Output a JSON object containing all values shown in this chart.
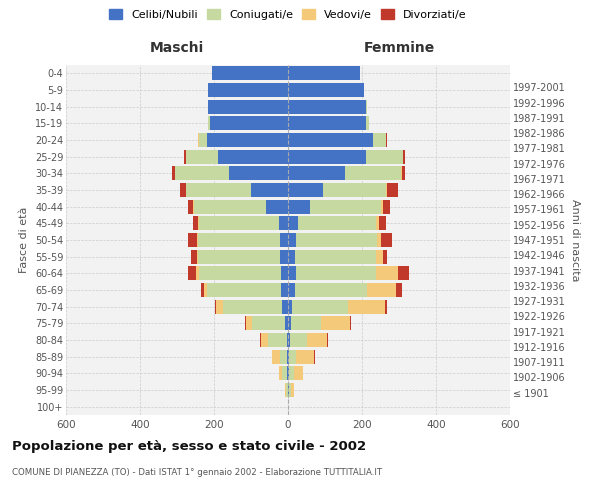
{
  "age_groups": [
    "100+",
    "95-99",
    "90-94",
    "85-89",
    "80-84",
    "75-79",
    "70-74",
    "65-69",
    "60-64",
    "55-59",
    "50-54",
    "45-49",
    "40-44",
    "35-39",
    "30-34",
    "25-29",
    "20-24",
    "15-19",
    "10-14",
    "5-9",
    "0-4"
  ],
  "birth_years": [
    "≤ 1901",
    "1902-1906",
    "1907-1911",
    "1912-1916",
    "1917-1921",
    "1922-1926",
    "1927-1931",
    "1932-1936",
    "1937-1941",
    "1942-1946",
    "1947-1951",
    "1952-1956",
    "1957-1961",
    "1962-1966",
    "1967-1971",
    "1972-1976",
    "1977-1981",
    "1982-1986",
    "1987-1991",
    "1992-1996",
    "1997-2001"
  ],
  "males": {
    "celibi": [
      0,
      1,
      3,
      2,
      4,
      8,
      15,
      20,
      20,
      22,
      22,
      25,
      60,
      100,
      160,
      190,
      220,
      210,
      215,
      215,
      205
    ],
    "coniugati": [
      1,
      4,
      12,
      20,
      50,
      90,
      160,
      200,
      220,
      220,
      220,
      215,
      195,
      175,
      145,
      85,
      20,
      5,
      2,
      1,
      0
    ],
    "vedovi": [
      0,
      3,
      10,
      20,
      20,
      15,
      20,
      8,
      8,
      5,
      3,
      2,
      2,
      2,
      1,
      2,
      2,
      0,
      0,
      0,
      0
    ],
    "divorziati": [
      0,
      0,
      0,
      1,
      2,
      2,
      2,
      8,
      22,
      15,
      25,
      15,
      12,
      15,
      8,
      5,
      2,
      0,
      0,
      0,
      0
    ]
  },
  "females": {
    "nubili": [
      0,
      2,
      3,
      3,
      5,
      8,
      12,
      18,
      22,
      20,
      22,
      28,
      60,
      95,
      155,
      210,
      230,
      210,
      210,
      205,
      195
    ],
    "coniugate": [
      1,
      5,
      12,
      18,
      45,
      80,
      150,
      195,
      215,
      218,
      218,
      210,
      192,
      170,
      150,
      100,
      35,
      8,
      3,
      1,
      0
    ],
    "vedove": [
      0,
      8,
      25,
      50,
      55,
      80,
      100,
      80,
      60,
      18,
      12,
      8,
      5,
      3,
      2,
      2,
      1,
      0,
      0,
      0,
      0
    ],
    "divorziate": [
      0,
      0,
      0,
      2,
      2,
      3,
      5,
      15,
      30,
      12,
      30,
      18,
      18,
      30,
      8,
      3,
      2,
      0,
      0,
      0,
      0
    ]
  },
  "color_celibi": "#4472C4",
  "color_coniugati": "#C5D9A0",
  "color_vedovi": "#F5C97A",
  "color_divorziati": "#C0392B",
  "title": "Popolazione per età, sesso e stato civile - 2002",
  "subtitle": "COMUNE DI PIANEZZA (TO) - Dati ISTAT 1° gennaio 2002 - Elaborazione TUTTITALIA.IT",
  "ylabel_left": "Fasce di età",
  "ylabel_right": "Anni di nascita",
  "xlabel_maschi": "Maschi",
  "xlabel_femmine": "Femmine",
  "xlim": 600,
  "bg_color": "#ffffff",
  "plot_bg_color": "#f2f2f2",
  "grid_color": "#cccccc",
  "legend_labels": [
    "Celibi/Nubili",
    "Coniugati/e",
    "Vedovi/e",
    "Divorziati/e"
  ]
}
